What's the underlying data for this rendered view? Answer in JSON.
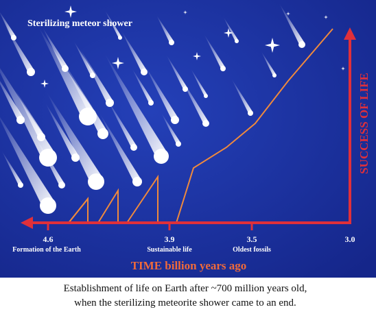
{
  "title": "Sterilizing meteor shower",
  "x_axis": {
    "label": "TIME billion years ago",
    "ticks": [
      "4.6",
      "3.9",
      "3.5",
      "3.0"
    ],
    "events": [
      "Formation of the Earth",
      "Sustainable life",
      "Oldest fossils"
    ]
  },
  "y_axis": {
    "label": "SUCCESS OF LIFE"
  },
  "caption": [
    "Establishment of life on Earth after ~700 million years old,",
    "when the sterilizing meteorite shower came to an end."
  ]
}
